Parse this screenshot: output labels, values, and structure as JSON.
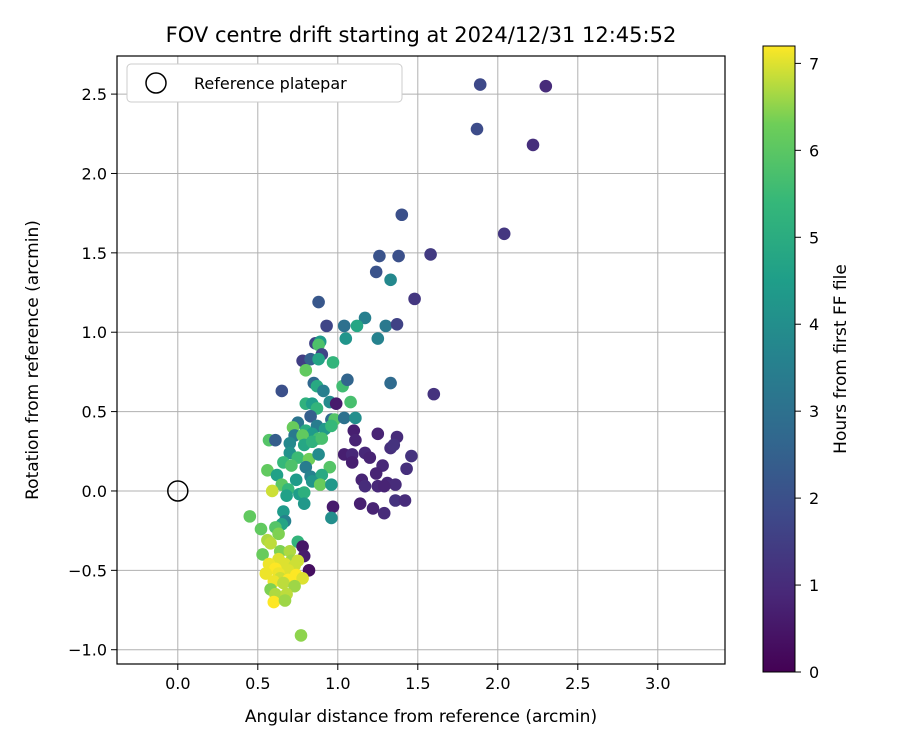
{
  "chart_data": {
    "type": "scatter",
    "title": "FOV centre drift starting at 2024/12/31 12:45:52",
    "xlabel": "Angular distance from reference (arcmin)",
    "ylabel": "Rotation from reference (arcmin)",
    "xlim": [
      -0.38,
      3.42
    ],
    "ylim": [
      -1.09,
      2.74
    ],
    "xticks": [
      0.0,
      0.5,
      1.0,
      1.5,
      2.0,
      2.5,
      3.0
    ],
    "yticks": [
      -1.0,
      -0.5,
      0.0,
      0.5,
      1.0,
      1.5,
      2.0,
      2.5
    ],
    "xtick_labels": [
      "0.0",
      "0.5",
      "1.0",
      "1.5",
      "2.0",
      "2.5",
      "3.0"
    ],
    "ytick_labels": [
      "−1.0",
      "−0.5",
      "0.0",
      "0.5",
      "1.0",
      "1.5",
      "2.0",
      "2.5"
    ],
    "grid": true,
    "legend": {
      "position": "top-left",
      "entries": [
        "Reference platepar"
      ]
    },
    "reference_point": {
      "x": 0.0,
      "y": 0.0,
      "label": "Reference platepar"
    },
    "colorbar": {
      "label": "Hours from first FF file",
      "colormap": "viridis",
      "range": [
        0,
        7.2
      ],
      "ticks": [
        0,
        1,
        2,
        3,
        4,
        5,
        6,
        7
      ],
      "tick_labels": [
        "0",
        "1",
        "2",
        "3",
        "4",
        "5",
        "6",
        "7"
      ]
    },
    "points": [
      [
        1.89,
        2.56,
        1.8
      ],
      [
        2.3,
        2.55,
        1.0
      ],
      [
        1.87,
        2.28,
        1.9
      ],
      [
        2.22,
        2.18,
        1.1
      ],
      [
        2.04,
        1.62,
        1.3
      ],
      [
        1.4,
        1.74,
        2.0
      ],
      [
        1.26,
        1.48,
        2.1
      ],
      [
        1.38,
        1.48,
        2.0
      ],
      [
        1.58,
        1.49,
        1.4
      ],
      [
        1.24,
        1.38,
        2.1
      ],
      [
        1.33,
        1.33,
        3.8
      ],
      [
        1.48,
        1.21,
        1.3
      ],
      [
        0.88,
        1.19,
        2.2
      ],
      [
        1.17,
        1.09,
        3.5
      ],
      [
        1.3,
        1.04,
        3.3
      ],
      [
        1.37,
        1.05,
        1.6
      ],
      [
        0.93,
        1.04,
        1.7
      ],
      [
        1.04,
        1.04,
        3.0
      ],
      [
        1.12,
        1.04,
        4.8
      ],
      [
        1.25,
        0.96,
        3.6
      ],
      [
        1.05,
        0.96,
        4.2
      ],
      [
        0.86,
        0.93,
        1.6
      ],
      [
        0.89,
        0.94,
        4.4
      ],
      [
        0.88,
        0.92,
        5.8
      ],
      [
        0.9,
        0.86,
        1.7
      ],
      [
        0.78,
        0.82,
        1.5
      ],
      [
        0.83,
        0.83,
        2.5
      ],
      [
        0.88,
        0.83,
        4.7
      ],
      [
        0.97,
        0.81,
        5.3
      ],
      [
        0.8,
        0.76,
        6.1
      ],
      [
        1.03,
        0.66,
        5.6
      ],
      [
        0.85,
        0.68,
        2.7
      ],
      [
        0.87,
        0.66,
        4.9
      ],
      [
        1.06,
        0.7,
        2.6
      ],
      [
        0.65,
        0.63,
        2.0
      ],
      [
        0.91,
        0.63,
        3.5
      ],
      [
        1.6,
        0.61,
        1.2
      ],
      [
        1.33,
        0.68,
        2.8
      ],
      [
        0.95,
        0.56,
        3.9
      ],
      [
        0.99,
        0.55,
        0.6
      ],
      [
        1.08,
        0.56,
        5.7
      ],
      [
        0.8,
        0.55,
        5.2
      ],
      [
        0.84,
        0.55,
        4.5
      ],
      [
        0.87,
        0.52,
        5.3
      ],
      [
        0.83,
        0.47,
        2.4
      ],
      [
        0.96,
        0.45,
        2.8
      ],
      [
        0.98,
        0.45,
        5.9
      ],
      [
        1.04,
        0.46,
        3.0
      ],
      [
        1.11,
        0.46,
        4.0
      ],
      [
        0.75,
        0.43,
        3.1
      ],
      [
        0.87,
        0.41,
        3.4
      ],
      [
        0.72,
        0.4,
        6.2
      ],
      [
        0.92,
        0.39,
        4.3
      ],
      [
        0.8,
        0.38,
        5.0
      ],
      [
        0.84,
        0.36,
        4.4
      ],
      [
        1.1,
        0.38,
        0.7
      ],
      [
        0.73,
        0.35,
        3.3
      ],
      [
        0.78,
        0.35,
        6.1
      ],
      [
        0.88,
        0.33,
        5.6
      ],
      [
        0.96,
        0.41,
        5.4
      ],
      [
        1.25,
        0.36,
        0.8
      ],
      [
        1.37,
        0.34,
        1.0
      ],
      [
        1.11,
        0.32,
        0.8
      ],
      [
        0.57,
        0.32,
        5.9
      ],
      [
        0.61,
        0.32,
        2.4
      ],
      [
        0.7,
        0.3,
        3.8
      ],
      [
        0.79,
        0.29,
        4.8
      ],
      [
        0.84,
        0.31,
        5.2
      ],
      [
        0.9,
        0.33,
        5.7
      ],
      [
        1.33,
        0.27,
        1.1
      ],
      [
        1.35,
        0.29,
        1.2
      ],
      [
        1.17,
        0.24,
        0.9
      ],
      [
        1.04,
        0.23,
        0.7
      ],
      [
        1.09,
        0.23,
        0.9
      ],
      [
        1.2,
        0.21,
        0.8
      ],
      [
        1.46,
        0.22,
        1.2
      ],
      [
        0.7,
        0.24,
        4.1
      ],
      [
        0.75,
        0.21,
        5.5
      ],
      [
        0.82,
        0.2,
        6.3
      ],
      [
        0.88,
        0.23,
        3.9
      ],
      [
        0.66,
        0.18,
        5.4
      ],
      [
        0.71,
        0.16,
        5.8
      ],
      [
        0.8,
        0.15,
        3.4
      ],
      [
        0.95,
        0.15,
        5.9
      ],
      [
        1.09,
        0.18,
        0.7
      ],
      [
        1.28,
        0.16,
        0.9
      ],
      [
        1.43,
        0.14,
        1.1
      ],
      [
        1.24,
        0.11,
        0.8
      ],
      [
        0.56,
        0.13,
        6.1
      ],
      [
        0.62,
        0.1,
        4.6
      ],
      [
        0.74,
        0.07,
        4.4
      ],
      [
        0.83,
        0.09,
        3.6
      ],
      [
        0.9,
        0.1,
        4.9
      ],
      [
        1.15,
        0.07,
        0.8
      ],
      [
        1.31,
        0.05,
        0.9
      ],
      [
        1.36,
        0.04,
        1.0
      ],
      [
        0.65,
        0.04,
        6.0
      ],
      [
        0.69,
        0.01,
        5.4
      ],
      [
        0.84,
        0.06,
        4.2
      ],
      [
        0.89,
        0.04,
        6.2
      ],
      [
        0.96,
        0.04,
        4.3
      ],
      [
        1.17,
        0.03,
        1.0
      ],
      [
        1.25,
        0.03,
        0.9
      ],
      [
        1.29,
        0.03,
        0.8
      ],
      [
        0.59,
        0.0,
        6.9
      ],
      [
        0.68,
        -0.03,
        4.6
      ],
      [
        0.76,
        -0.02,
        4.5
      ],
      [
        0.79,
        -0.01,
        5.1
      ],
      [
        1.14,
        -0.08,
        0.7
      ],
      [
        1.22,
        -0.11,
        0.8
      ],
      [
        1.29,
        -0.14,
        1.0
      ],
      [
        1.36,
        -0.06,
        1.2
      ],
      [
        1.42,
        -0.06,
        1.0
      ],
      [
        0.79,
        -0.08,
        4.3
      ],
      [
        0.97,
        -0.1,
        0.6
      ],
      [
        0.96,
        -0.17,
        4.0
      ],
      [
        0.66,
        -0.13,
        4.4
      ],
      [
        0.45,
        -0.16,
        6.1
      ],
      [
        0.67,
        -0.19,
        3.6
      ],
      [
        0.65,
        -0.21,
        4.7
      ],
      [
        0.52,
        -0.24,
        6.1
      ],
      [
        0.61,
        -0.23,
        5.9
      ],
      [
        0.63,
        -0.27,
        6.4
      ],
      [
        0.56,
        -0.31,
        6.7
      ],
      [
        0.58,
        -0.33,
        6.8
      ],
      [
        0.75,
        -0.32,
        5.3
      ],
      [
        0.78,
        -0.35,
        0.5
      ],
      [
        0.64,
        -0.38,
        6.4
      ],
      [
        0.7,
        -0.38,
        6.7
      ],
      [
        0.53,
        -0.4,
        6.2
      ],
      [
        0.79,
        -0.41,
        0.6
      ],
      [
        0.63,
        -0.43,
        7.0
      ],
      [
        0.71,
        -0.44,
        6.6
      ],
      [
        0.75,
        -0.44,
        6.9
      ],
      [
        0.57,
        -0.46,
        7.1
      ],
      [
        0.67,
        -0.46,
        7.0
      ],
      [
        0.73,
        -0.47,
        6.9
      ],
      [
        0.61,
        -0.49,
        7.2
      ],
      [
        0.69,
        -0.5,
        7.0
      ],
      [
        0.82,
        -0.5,
        0.3
      ],
      [
        0.55,
        -0.52,
        7.1
      ],
      [
        0.63,
        -0.52,
        7.1
      ],
      [
        0.74,
        -0.53,
        7.2
      ],
      [
        0.64,
        -0.55,
        6.9
      ],
      [
        0.69,
        -0.56,
        7.2
      ],
      [
        0.78,
        -0.55,
        7.0
      ],
      [
        0.6,
        -0.57,
        7.1
      ],
      [
        0.66,
        -0.58,
        6.8
      ],
      [
        0.73,
        -0.6,
        6.6
      ],
      [
        0.58,
        -0.62,
        6.4
      ],
      [
        0.61,
        -0.65,
        6.7
      ],
      [
        0.68,
        -0.65,
        6.8
      ],
      [
        0.6,
        -0.7,
        7.2
      ],
      [
        0.67,
        -0.69,
        6.6
      ],
      [
        0.77,
        -0.91,
        6.5
      ]
    ]
  }
}
